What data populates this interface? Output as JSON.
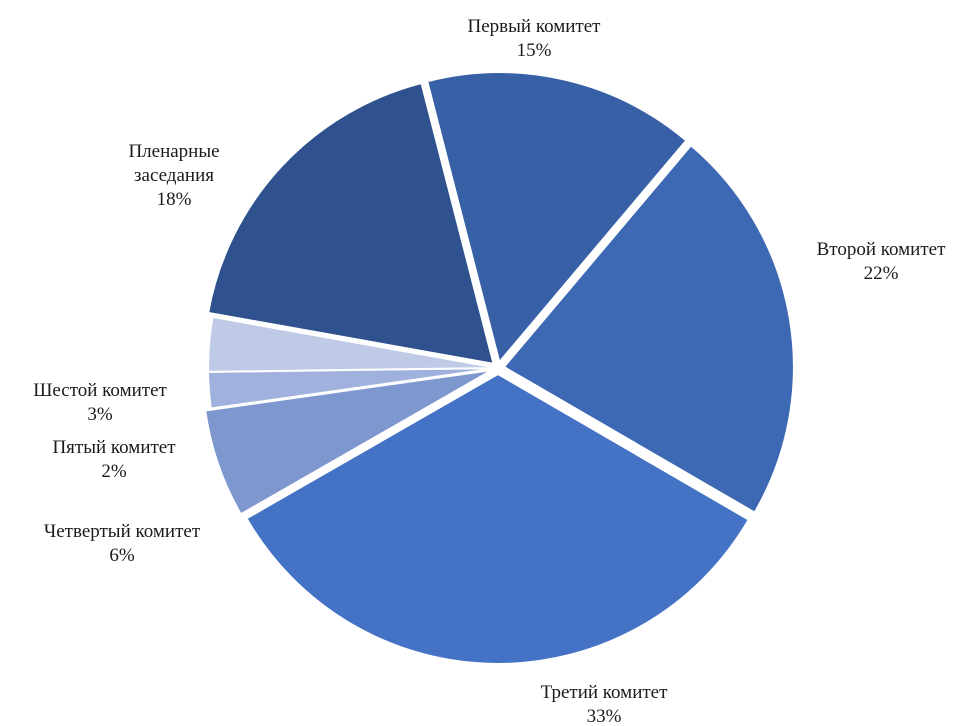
{
  "chart_data": {
    "type": "pie",
    "title": "",
    "slices": [
      {
        "name": "Первый комитет",
        "label_lines": [
          "Первый комитет"
        ],
        "pct_label": "15%",
        "value": 15,
        "color": "#3860a6",
        "exploded": true
      },
      {
        "name": "Второй комитет",
        "label_lines": [
          "Второй комитет"
        ],
        "pct_label": "22%",
        "value": 22,
        "color": "#3d69b4",
        "exploded": true
      },
      {
        "name": "Третий комитет",
        "label_lines": [
          "Третий комитет"
        ],
        "pct_label": "33%",
        "value": 33,
        "color": "#4472c4",
        "exploded": true
      },
      {
        "name": "Четвертый комитет",
        "label_lines": [
          "Четвертый комитет"
        ],
        "pct_label": "6%",
        "value": 6,
        "color": "#7f97cf",
        "exploded": true
      },
      {
        "name": "Пятый комитет",
        "label_lines": [
          "Пятый комитет"
        ],
        "pct_label": "2%",
        "value": 2,
        "color": "#9fb1dc",
        "exploded": false
      },
      {
        "name": "Шестой комитет",
        "label_lines": [
          "Шестой комитет"
        ],
        "pct_label": "3%",
        "value": 3,
        "color": "#bfcae6",
        "exploded": false
      },
      {
        "name": "Пленарные заседания",
        "label_lines": [
          "Пленарные",
          "заседания"
        ],
        "pct_label": "18%",
        "value": 18,
        "color": "#2f528e",
        "exploded": true
      }
    ]
  }
}
